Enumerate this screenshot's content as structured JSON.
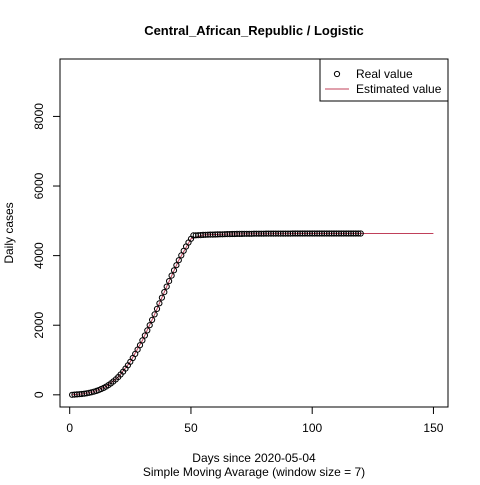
{
  "chart_data": {
    "type": "scatter",
    "title": "Central_African_Republic / Logistic",
    "xlabel": "Days since 2020-05-04",
    "xlabel_sub": "Simple Moving Avarage (window size = 7)",
    "ylabel": "Daily cases",
    "xlim": [
      -4,
      156
    ],
    "ylim": [
      -350,
      9650
    ],
    "x_ticks": [
      0,
      50,
      100,
      150
    ],
    "y_ticks": [
      0,
      2000,
      4000,
      6000,
      8000
    ],
    "grid": false,
    "legend_position": "top-right",
    "series": [
      {
        "name": "Real value",
        "kind": "points",
        "color": "#000000",
        "x": [
          1,
          2,
          3,
          4,
          5,
          6,
          7,
          8,
          9,
          10,
          11,
          12,
          13,
          14,
          15,
          16,
          17,
          18,
          19,
          20,
          21,
          22,
          23,
          24,
          25,
          26,
          27,
          28,
          29,
          30,
          31,
          32,
          33,
          34,
          35,
          36,
          37,
          38,
          39,
          40,
          41,
          42,
          43,
          44,
          45,
          46,
          47,
          48,
          49,
          50,
          51,
          52,
          53,
          54,
          55,
          56,
          57,
          58,
          59,
          60,
          61,
          62,
          63,
          64,
          65,
          66,
          67,
          68,
          69,
          70,
          71,
          72,
          73,
          74,
          75,
          76,
          77,
          78,
          79,
          80,
          81,
          82,
          83,
          84,
          85,
          86,
          87,
          88,
          89,
          90,
          91,
          92,
          93,
          94,
          95,
          96,
          97,
          98,
          99,
          100,
          101,
          102,
          103,
          104,
          105,
          106,
          107,
          108,
          109,
          110,
          111,
          112,
          113,
          114,
          115,
          116,
          117,
          118,
          119,
          120
        ],
        "y": [
          2,
          6,
          11,
          17,
          24,
          33,
          44,
          57,
          72,
          90,
          112,
          137,
          166,
          199,
          237,
          280,
          328,
          383,
          443,
          510,
          584,
          665,
          753,
          848,
          950,
          1059,
          1175,
          1298,
          1427,
          1563,
          1704,
          1850,
          2000,
          2153,
          2310,
          2469,
          2629,
          2790,
          2951,
          3111,
          3269,
          3425,
          3577,
          3726,
          3869,
          4007,
          4138,
          4261,
          4377,
          4484,
          4581,
          4584,
          4588,
          4591,
          4594,
          4597,
          4600,
          4603,
          4605,
          4608,
          4610,
          4612,
          4614,
          4616,
          4618,
          4619,
          4620,
          4622,
          4623,
          4624,
          4625,
          4626,
          4627,
          4628,
          4628,
          4629,
          4630,
          4630,
          4631,
          4631,
          4632,
          4632,
          4632,
          4633,
          4633,
          4633,
          4634,
          4634,
          4634,
          4634,
          4634,
          4635,
          4635,
          4635,
          4635,
          4635,
          4635,
          4635,
          4635,
          4636,
          4636,
          4636,
          4636,
          4636,
          4636,
          4636,
          4636,
          4636,
          4636,
          4636,
          4636,
          4636,
          4636,
          4636,
          4636,
          4636,
          4636,
          4636,
          4636,
          4636
        ]
      },
      {
        "name": "Estimated value",
        "kind": "line",
        "color": "#c0405a",
        "x": [
          1,
          5,
          10,
          15,
          20,
          25,
          30,
          35,
          40,
          45,
          50,
          55,
          60,
          65,
          70,
          75,
          80,
          85,
          90,
          95,
          100,
          110,
          120,
          130,
          140,
          150
        ],
        "y": [
          2,
          24,
          90,
          237,
          510,
          950,
          1563,
          2310,
          3111,
          3869,
          4484,
          4594,
          4608,
          4618,
          4624,
          4628,
          4631,
          4633,
          4634,
          4635,
          4636,
          4636,
          4636,
          4636,
          4636,
          4636
        ]
      }
    ]
  }
}
